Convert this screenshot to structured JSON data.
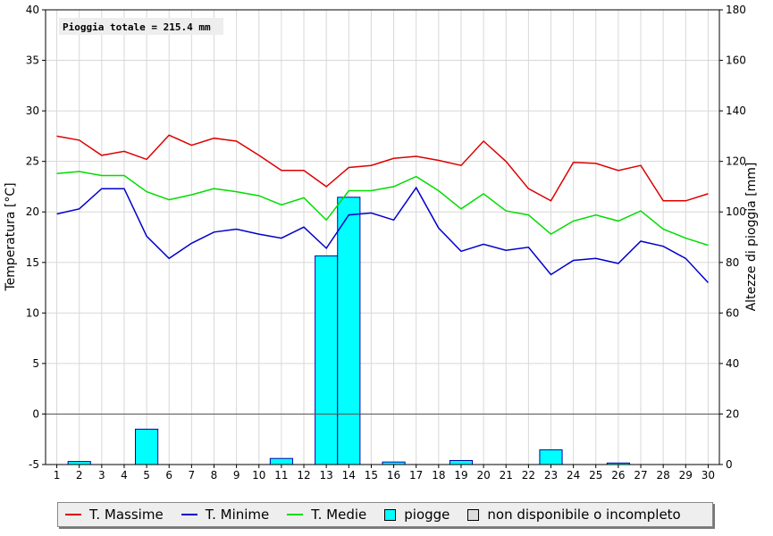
{
  "chart_data": {
    "type": "bar+line",
    "annotation": "Pioggia totale = 215.4 mm",
    "ylabel_left": "Temperatura [°C]",
    "ylabel_right": "Altezze di pioggia [mm]",
    "ylim_left": [
      -5,
      40
    ],
    "ylim_right": [
      0,
      180
    ],
    "yticks_left": [
      -5,
      0,
      5,
      10,
      15,
      20,
      25,
      30,
      35,
      40
    ],
    "yticks_right": [
      0,
      20,
      40,
      60,
      80,
      100,
      120,
      140,
      160,
      180
    ],
    "x": [
      1,
      2,
      3,
      4,
      5,
      6,
      7,
      8,
      9,
      10,
      11,
      12,
      13,
      14,
      15,
      16,
      17,
      18,
      19,
      20,
      21,
      22,
      23,
      24,
      25,
      26,
      27,
      28,
      29,
      30
    ],
    "grid": true,
    "legend_position": "bottom",
    "series": [
      {
        "name": "T. Massime",
        "axis": "left",
        "kind": "line",
        "color": "#dd0000",
        "values": [
          27.5,
          27.1,
          25.6,
          26.0,
          25.2,
          27.6,
          26.6,
          27.3,
          27.0,
          25.6,
          24.1,
          24.1,
          22.5,
          24.4,
          24.6,
          25.3,
          25.5,
          25.1,
          24.6,
          27.0,
          25.0,
          22.3,
          21.1,
          24.9,
          24.8,
          24.1,
          24.6,
          21.1,
          21.1,
          21.8
        ]
      },
      {
        "name": "T. Minime",
        "axis": "left",
        "kind": "line",
        "color": "#0000cc",
        "values": [
          19.8,
          20.3,
          22.3,
          22.3,
          17.6,
          15.4,
          16.9,
          18.0,
          18.3,
          17.8,
          17.4,
          18.5,
          16.4,
          19.7,
          19.9,
          19.2,
          22.4,
          18.4,
          16.1,
          16.8,
          16.2,
          16.5,
          13.8,
          15.2,
          15.4,
          14.9,
          17.1,
          16.6,
          15.4,
          13.0
        ]
      },
      {
        "name": "T. Medie",
        "axis": "left",
        "kind": "line",
        "color": "#00dd00",
        "values": [
          23.8,
          24.0,
          23.6,
          23.6,
          22.0,
          21.2,
          21.7,
          22.3,
          22.0,
          21.6,
          20.7,
          21.4,
          19.2,
          22.1,
          22.1,
          22.5,
          23.5,
          22.1,
          20.3,
          21.8,
          20.1,
          19.7,
          17.8,
          19.1,
          19.7,
          19.1,
          20.1,
          18.3,
          17.4,
          16.7
        ]
      },
      {
        "name": "piogge",
        "axis": "right",
        "kind": "bar",
        "color": "#00ffff",
        "values": [
          0,
          1.2,
          0,
          0,
          14.0,
          0,
          0,
          0,
          0,
          0,
          2.4,
          0,
          82.6,
          105.8,
          0,
          1.0,
          0,
          0,
          1.6,
          0,
          0,
          0,
          5.8,
          0,
          0,
          0.6,
          0,
          0,
          0,
          0
        ]
      }
    ],
    "legend": [
      {
        "label": "T. Massime",
        "kind": "line",
        "color": "#dd0000"
      },
      {
        "label": "T. Minime",
        "kind": "line",
        "color": "#0000cc"
      },
      {
        "label": "T. Medie",
        "kind": "line",
        "color": "#00dd00"
      },
      {
        "label": "piogge",
        "kind": "box",
        "color": "#00ffff"
      },
      {
        "label": "non disponibile o incompleto",
        "kind": "box",
        "color": "#dddddd"
      }
    ]
  }
}
